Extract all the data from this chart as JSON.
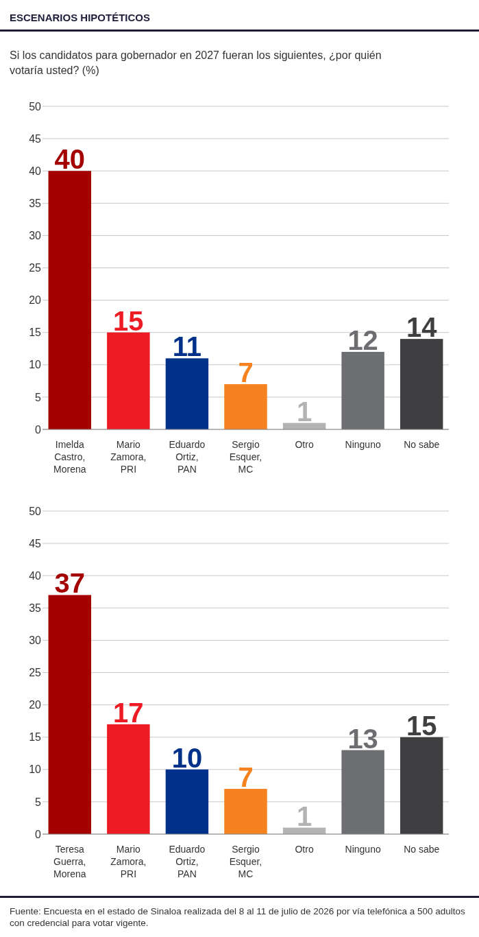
{
  "chart_data": [
    {
      "type": "bar",
      "title": "ESCENARIOS HIPOTÉTICOS",
      "subtitle": "Si los candidatos para gobernador en 2027 fueran los siguientes, ¿por quién votaría usted?   (%)",
      "categories": [
        "Imelda Castro, Morena",
        "Mario Zamora, PRI",
        "Eduardo Ortiz, PAN",
        "Sergio Esquer, MC",
        "Otro",
        "Ninguno",
        "No sabe"
      ],
      "values": [
        40,
        15,
        11,
        7,
        1,
        12,
        14
      ],
      "colors": [
        "#a50000",
        "#ed1c24",
        "#00318a",
        "#f5821f",
        "#b3b3b3",
        "#6d6e71",
        "#3f3f41"
      ],
      "ylim": [
        0,
        50
      ],
      "yticks": [
        0,
        5,
        10,
        15,
        20,
        25,
        30,
        35,
        40,
        45,
        50
      ],
      "grid": "y",
      "data_labels": true
    },
    {
      "type": "bar",
      "categories": [
        "Teresa Guerra, Morena",
        "Mario Zamora, PRI",
        "Eduardo Ortiz, PAN",
        "Sergio Esquer, MC",
        "Otro",
        "Ninguno",
        "No sabe"
      ],
      "values": [
        37,
        17,
        10,
        7,
        1,
        13,
        15
      ],
      "colors": [
        "#a50000",
        "#ed1c24",
        "#00318a",
        "#f5821f",
        "#b3b3b3",
        "#6d6e71",
        "#3f3f41"
      ],
      "ylim": [
        0,
        50
      ],
      "yticks": [
        0,
        5,
        10,
        15,
        20,
        25,
        30,
        35,
        40,
        45,
        50
      ],
      "grid": "y",
      "data_labels": true,
      "annotations": [
        "Fuente: Encuesta en el estado de Sinaloa realizada del 8 al 11 de julio de 2026 por vía telefónica a 500 adultos con credencial para votar vigente."
      ]
    }
  ]
}
